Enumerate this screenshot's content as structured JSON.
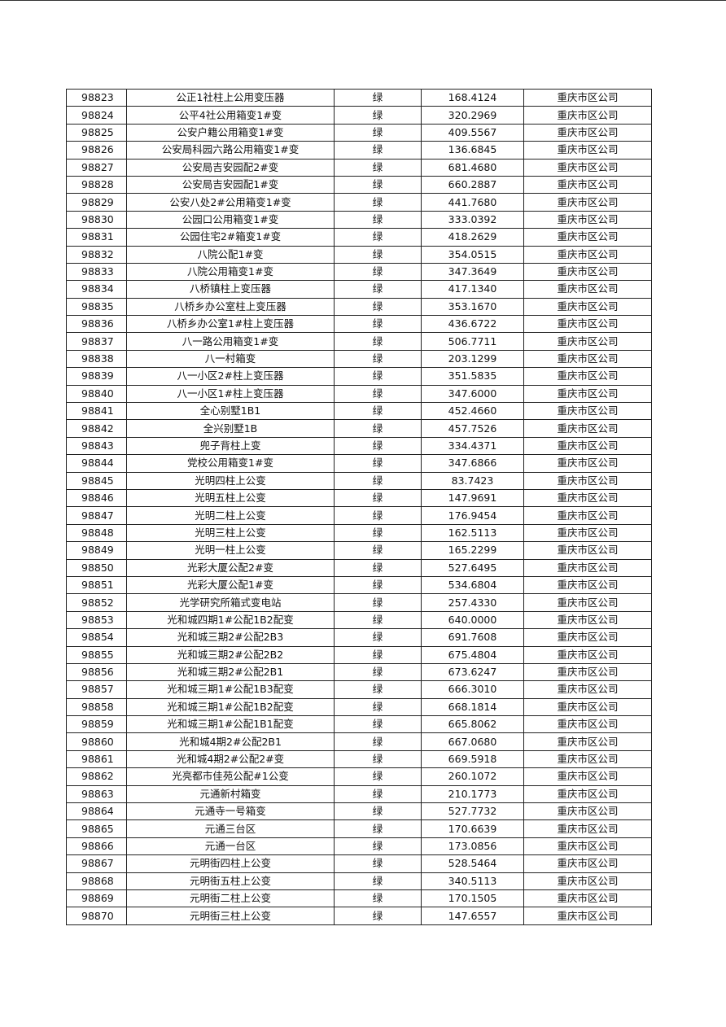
{
  "table": {
    "rows": [
      [
        "98823",
        "公正1社柱上公用变压器",
        "绿",
        "168.4124",
        "重庆市区公司"
      ],
      [
        "98824",
        "公平4社公用箱变1#变",
        "绿",
        "320.2969",
        "重庆市区公司"
      ],
      [
        "98825",
        "公安户籍公用箱变1#变",
        "绿",
        "409.5567",
        "重庆市区公司"
      ],
      [
        "98826",
        "公安局科园六路公用箱变1#变",
        "绿",
        "136.6845",
        "重庆市区公司"
      ],
      [
        "98827",
        "公安局吉安园配2#变",
        "绿",
        "681.4680",
        "重庆市区公司"
      ],
      [
        "98828",
        "公安局吉安园配1#变",
        "绿",
        "660.2887",
        "重庆市区公司"
      ],
      [
        "98829",
        "公安八处2#公用箱变1#变",
        "绿",
        "441.7680",
        "重庆市区公司"
      ],
      [
        "98830",
        "公园口公用箱变1#变",
        "绿",
        "333.0392",
        "重庆市区公司"
      ],
      [
        "98831",
        "公园住宅2#箱变1#变",
        "绿",
        "418.2629",
        "重庆市区公司"
      ],
      [
        "98832",
        "八院公配1#变",
        "绿",
        "354.0515",
        "重庆市区公司"
      ],
      [
        "98833",
        "八院公用箱变1#变",
        "绿",
        "347.3649",
        "重庆市区公司"
      ],
      [
        "98834",
        "八桥镇柱上变压器",
        "绿",
        "417.1340",
        "重庆市区公司"
      ],
      [
        "98835",
        "八桥乡办公室柱上变压器",
        "绿",
        "353.1670",
        "重庆市区公司"
      ],
      [
        "98836",
        "八桥乡办公室1#柱上变压器",
        "绿",
        "436.6722",
        "重庆市区公司"
      ],
      [
        "98837",
        "八一路公用箱变1#变",
        "绿",
        "506.7711",
        "重庆市区公司"
      ],
      [
        "98838",
        "八一村箱变",
        "绿",
        "203.1299",
        "重庆市区公司"
      ],
      [
        "98839",
        "八一小区2#柱上变压器",
        "绿",
        "351.5835",
        "重庆市区公司"
      ],
      [
        "98840",
        "八一小区1#柱上变压器",
        "绿",
        "347.6000",
        "重庆市区公司"
      ],
      [
        "98841",
        "全心别墅1B1",
        "绿",
        "452.4660",
        "重庆市区公司"
      ],
      [
        "98842",
        "全兴别墅1B",
        "绿",
        "457.7526",
        "重庆市区公司"
      ],
      [
        "98843",
        "兜子背柱上变",
        "绿",
        "334.4371",
        "重庆市区公司"
      ],
      [
        "98844",
        "党校公用箱变1#变",
        "绿",
        "347.6866",
        "重庆市区公司"
      ],
      [
        "98845",
        "光明四柱上公变",
        "绿",
        "83.7423",
        "重庆市区公司"
      ],
      [
        "98846",
        "光明五柱上公变",
        "绿",
        "147.9691",
        "重庆市区公司"
      ],
      [
        "98847",
        "光明二柱上公变",
        "绿",
        "176.9454",
        "重庆市区公司"
      ],
      [
        "98848",
        "光明三柱上公变",
        "绿",
        "162.5113",
        "重庆市区公司"
      ],
      [
        "98849",
        "光明一柱上公变",
        "绿",
        "165.2299",
        "重庆市区公司"
      ],
      [
        "98850",
        "光彩大厦公配2#变",
        "绿",
        "527.6495",
        "重庆市区公司"
      ],
      [
        "98851",
        "光彩大厦公配1#变",
        "绿",
        "534.6804",
        "重庆市区公司"
      ],
      [
        "98852",
        "光学研究所箱式变电站",
        "绿",
        "257.4330",
        "重庆市区公司"
      ],
      [
        "98853",
        "光和城四期1#公配1B2配变",
        "绿",
        "640.0000",
        "重庆市区公司"
      ],
      [
        "98854",
        "光和城三期2#公配2B3",
        "绿",
        "691.7608",
        "重庆市区公司"
      ],
      [
        "98855",
        "光和城三期2#公配2B2",
        "绿",
        "675.4804",
        "重庆市区公司"
      ],
      [
        "98856",
        "光和城三期2#公配2B1",
        "绿",
        "673.6247",
        "重庆市区公司"
      ],
      [
        "98857",
        "光和城三期1#公配1B3配变",
        "绿",
        "666.3010",
        "重庆市区公司"
      ],
      [
        "98858",
        "光和城三期1#公配1B2配变",
        "绿",
        "668.1814",
        "重庆市区公司"
      ],
      [
        "98859",
        "光和城三期1#公配1B1配变",
        "绿",
        "665.8062",
        "重庆市区公司"
      ],
      [
        "98860",
        "光和城4期2#公配2B1",
        "绿",
        "667.0680",
        "重庆市区公司"
      ],
      [
        "98861",
        "光和城4期2#公配2#变",
        "绿",
        "669.5918",
        "重庆市区公司"
      ],
      [
        "98862",
        "光亮都市佳苑公配#1公变",
        "绿",
        "260.1072",
        "重庆市区公司"
      ],
      [
        "98863",
        "元通新村箱变",
        "绿",
        "210.1773",
        "重庆市区公司"
      ],
      [
        "98864",
        "元通寺一号箱变",
        "绿",
        "527.7732",
        "重庆市区公司"
      ],
      [
        "98865",
        "元通三台区",
        "绿",
        "170.6639",
        "重庆市区公司"
      ],
      [
        "98866",
        "元通一台区",
        "绿",
        "173.0856",
        "重庆市区公司"
      ],
      [
        "98867",
        "元明街四柱上公变",
        "绿",
        "528.5464",
        "重庆市区公司"
      ],
      [
        "98868",
        "元明街五柱上公变",
        "绿",
        "340.5113",
        "重庆市区公司"
      ],
      [
        "98869",
        "元明街二柱上公变",
        "绿",
        "170.1505",
        "重庆市区公司"
      ],
      [
        "98870",
        "元明街三柱上公变",
        "绿",
        "147.6557",
        "重庆市区公司"
      ]
    ]
  }
}
